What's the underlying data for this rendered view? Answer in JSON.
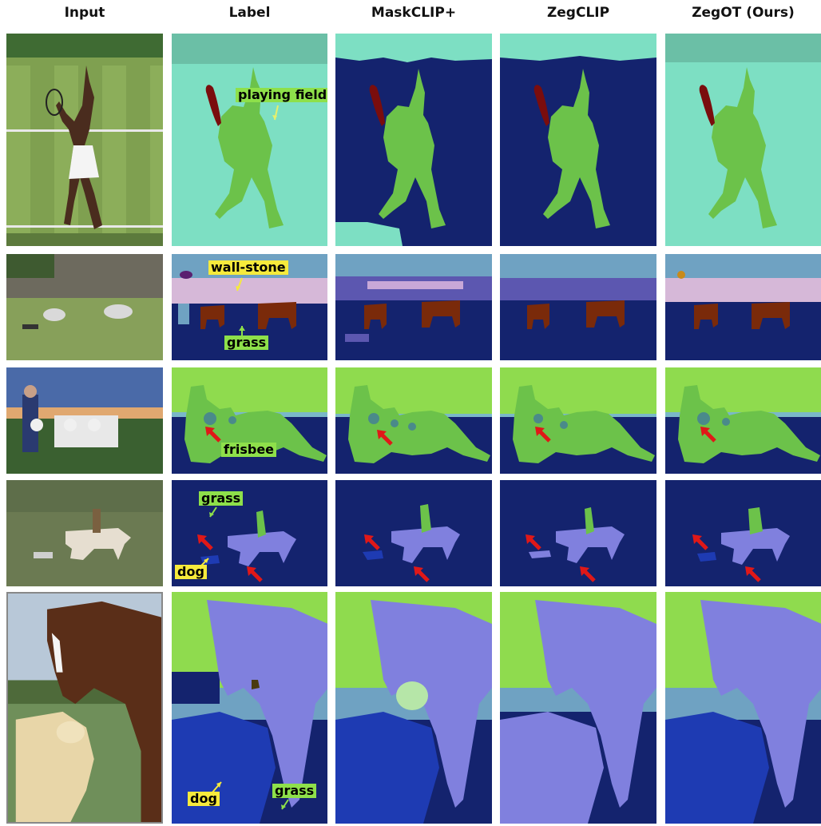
{
  "columns": [
    "Input",
    "Label",
    "MaskCLIP+",
    "ZegCLIP",
    "ZegOT (Ours)"
  ],
  "annotations": {
    "row1_label_playing_field": "playing field",
    "row2_label_wall_stone": "wall-stone",
    "row2_label_grass": "grass",
    "row3_label_frisbee": "frisbee",
    "row4_label_grass": "grass",
    "row4_label_dog": "dog",
    "row5_label_dog": "dog",
    "row5_label_grass": "grass"
  },
  "colors": {
    "navy": "#14236e",
    "field": "#7ddfc3",
    "field_top": "#6bbfa6",
    "person": "#6cc24a",
    "racket": "#7a0d0d",
    "sky_green": "#8fdb4e",
    "horse": "#8080de",
    "dog": "#1e3bb3",
    "zebra": "#7a2a0a",
    "stone": "#d6b8d8",
    "wall": "#6fa2c2",
    "frisbee": "#4a8a8a",
    "arrow_red": "#e01818"
  }
}
